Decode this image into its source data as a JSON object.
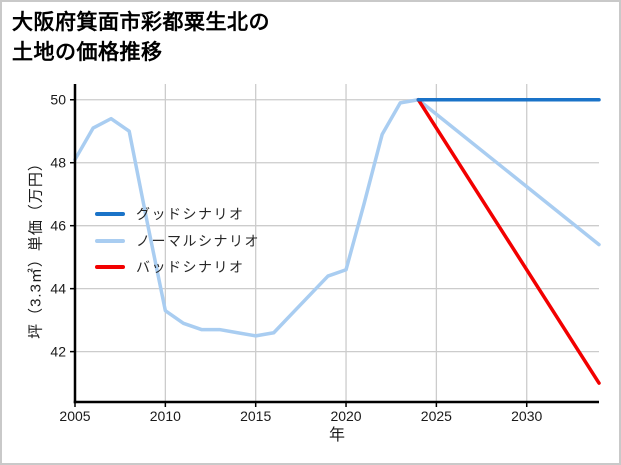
{
  "chart_data": {
    "type": "line",
    "title": "大阪府箕面市彩都粟生北の\n土地の価格推移",
    "xlabel": "年",
    "ylabel": "坪（3.3㎡）単価（万円）",
    "x_ticks": [
      2005,
      2010,
      2015,
      2020,
      2025,
      2030
    ],
    "y_ticks": [
      42,
      44,
      46,
      48,
      50
    ],
    "x_range": [
      2005,
      2034
    ],
    "y_range": [
      40.4,
      50.5
    ],
    "grid": true,
    "grid_color": "#cccccc",
    "axis_color": "#000000",
    "tick_label_color": "#1a1a1a",
    "legend_position": "center-left",
    "series": [
      {
        "name": "グッドシナリオ",
        "color": "#1a73c8",
        "z": 3,
        "x": [
          2024,
          2034
        ],
        "values": [
          50.0,
          50.0
        ]
      },
      {
        "name": "ノーマルシナリオ",
        "color": "#a9cdf1",
        "z": 1,
        "x": [
          2005,
          2006,
          2007,
          2008,
          2009,
          2010,
          2011,
          2012,
          2013,
          2014,
          2015,
          2016,
          2017,
          2018,
          2019,
          2020,
          2021,
          2022,
          2023,
          2024,
          2034
        ],
        "values": [
          48.1,
          49.1,
          49.4,
          49.0,
          46.1,
          43.3,
          42.9,
          42.7,
          42.7,
          42.6,
          42.5,
          42.6,
          43.2,
          43.8,
          44.4,
          44.6,
          46.7,
          48.9,
          49.9,
          50.0,
          45.4
        ]
      },
      {
        "name": "バッドシナリオ",
        "color": "#f20000",
        "z": 2,
        "x": [
          2024,
          2034
        ],
        "values": [
          50.0,
          41.0
        ]
      }
    ]
  }
}
